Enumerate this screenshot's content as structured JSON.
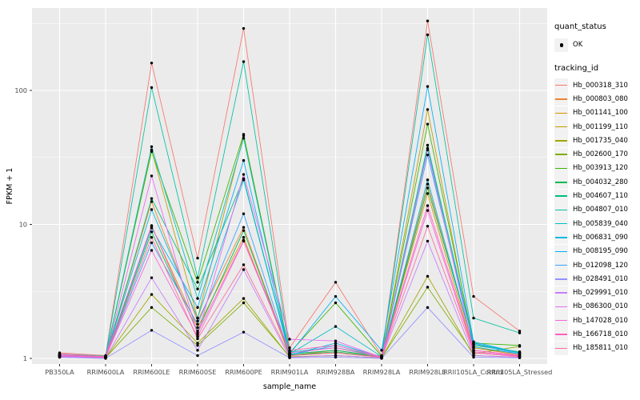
{
  "figure": {
    "background": "#FFFFFF",
    "panel_bg": "#EBEBEB",
    "grid_major_color": "#FFFFFF",
    "grid_minor_color": "#FFFFFF",
    "tick_color": "#333333",
    "tick_label_color": "#4D4D4D",
    "point_color": "#000000"
  },
  "axes": {
    "x_label": "sample_name",
    "y_label": "FPKM + 1",
    "y_tick_labels": [
      "1",
      "10",
      "100"
    ],
    "y_tick_values": [
      1,
      10,
      100
    ],
    "y_minor_values": [
      3.162,
      31.62,
      316.2
    ]
  },
  "legend": {
    "quant_title": "quant_status",
    "quant_items": [
      {
        "label": "OK",
        "shape": "point"
      }
    ],
    "tracking_title": "tracking_id"
  },
  "chart_data": {
    "type": "line",
    "log_y": true,
    "title": "",
    "xlabel": "sample_name",
    "ylabel": "FPKM + 1",
    "ylim": [
      1,
      350
    ],
    "legend_position": "right",
    "grid": true,
    "categories": [
      "PB350LA",
      "RRIM600LA",
      "RRIM600LE",
      "RRIM600SE",
      "RRIM600PE",
      "RRIM901LA",
      "RRIM928BA",
      "RRIM928LA",
      "RRIM928LE",
      "RRII105LA_Control",
      "RRII105LA_Stressed"
    ],
    "series": [
      {
        "name": "Hb_000318_310",
        "color": "#F8766D",
        "values": [
          1.1,
          1.05,
          160,
          5.6,
          290,
          1.2,
          3.7,
          1.05,
          330,
          2.9,
          1.6
        ]
      },
      {
        "name": "Hb_000803_080",
        "color": "#EA8331",
        "values": [
          1.05,
          1.02,
          14.8,
          1.9,
          9.5,
          1.05,
          1.15,
          1.02,
          20.0,
          1.2,
          1.06
        ]
      },
      {
        "name": "Hb_001141_100",
        "color": "#D89000",
        "values": [
          1.04,
          1.02,
          9.7,
          1.7,
          8.0,
          1.05,
          1.1,
          1.02,
          17.0,
          1.15,
          1.05
        ]
      },
      {
        "name": "Hb_001199_110",
        "color": "#C09B00",
        "values": [
          1.05,
          1.03,
          36,
          2.0,
          46,
          1.08,
          1.15,
          1.03,
          72,
          1.2,
          1.08
        ]
      },
      {
        "name": "Hb_001735_040",
        "color": "#A3A500",
        "values": [
          1.02,
          1.01,
          3.0,
          1.3,
          2.8,
          1.02,
          1.05,
          1.01,
          4.1,
          1.05,
          1.02
        ]
      },
      {
        "name": "Hb_002600_170",
        "color": "#7CAE00",
        "values": [
          1.03,
          1.01,
          2.4,
          1.25,
          2.6,
          1.03,
          1.05,
          1.01,
          3.4,
          1.08,
          1.23
        ]
      },
      {
        "name": "Hb_003913_120",
        "color": "#39B600",
        "values": [
          1.05,
          1.03,
          35,
          3.7,
          47,
          1.1,
          2.6,
          1.04,
          56,
          1.3,
          1.25
        ]
      },
      {
        "name": "Hb_004032_280",
        "color": "#00BB4E",
        "values": [
          1.04,
          1.02,
          8.8,
          1.6,
          9.0,
          1.06,
          1.12,
          1.02,
          18.7,
          1.25,
          1.12
        ]
      },
      {
        "name": "Hb_004607_110",
        "color": "#00BF7D",
        "values": [
          1.05,
          1.02,
          15.6,
          3.3,
          22,
          1.08,
          1.15,
          1.03,
          39,
          1.28,
          1.1
        ]
      },
      {
        "name": "Hb_004807_010",
        "color": "#00C1A3",
        "values": [
          1.08,
          1.04,
          105,
          4.0,
          164,
          1.12,
          1.2,
          1.04,
          260,
          2.0,
          1.55
        ]
      },
      {
        "name": "Hb_005839_040",
        "color": "#00BFC4",
        "values": [
          1.06,
          1.03,
          38,
          2.8,
          44,
          1.08,
          1.73,
          1.03,
          37,
          1.3,
          1.1
        ]
      },
      {
        "name": "Hb_006831_090",
        "color": "#00BAE0",
        "values": [
          1.05,
          1.02,
          12.9,
          2.0,
          21.5,
          1.06,
          1.3,
          1.02,
          21.5,
          1.22,
          1.08
        ]
      },
      {
        "name": "Hb_008195_090",
        "color": "#00B0F6",
        "values": [
          1.06,
          1.03,
          9.4,
          2.4,
          30,
          1.08,
          2.9,
          1.15,
          107,
          1.33,
          1.1
        ]
      },
      {
        "name": "Hb_012098_120",
        "color": "#35A2FF",
        "values": [
          1.05,
          1.02,
          7.3,
          1.8,
          12,
          1.06,
          1.25,
          1.03,
          33,
          1.28,
          1.08
        ]
      },
      {
        "name": "Hb_028491_010",
        "color": "#9590FF",
        "values": [
          1.02,
          1.0,
          1.62,
          1.05,
          1.57,
          1.01,
          1.02,
          1.0,
          2.4,
          1.02,
          1.01
        ]
      },
      {
        "name": "Hb_029991_010",
        "color": "#C77CFF",
        "values": [
          1.03,
          1.01,
          4.0,
          1.15,
          4.6,
          1.02,
          1.05,
          1.01,
          7.5,
          1.05,
          1.02
        ]
      },
      {
        "name": "Hb_086300_010",
        "color": "#E76BF3",
        "values": [
          1.04,
          1.02,
          23,
          1.5,
          23.6,
          1.39,
          1.35,
          1.02,
          36,
          1.15,
          1.05
        ]
      },
      {
        "name": "Hb_147028_010",
        "color": "#FA62DB",
        "values": [
          1.05,
          1.02,
          6.4,
          1.45,
          7.5,
          1.1,
          1.2,
          1.02,
          12.7,
          1.12,
          1.04
        ]
      },
      {
        "name": "Hb_166718_010",
        "color": "#FF62BC",
        "values": [
          1.08,
          1.03,
          9.8,
          1.55,
          7.6,
          1.15,
          1.25,
          1.03,
          13.8,
          1.15,
          1.05
        ]
      },
      {
        "name": "Hb_185811_010",
        "color": "#FF6A98",
        "values": [
          1.06,
          1.02,
          8.0,
          1.4,
          5.0,
          1.05,
          1.1,
          1.02,
          9.7,
          1.1,
          1.03
        ]
      }
    ]
  }
}
